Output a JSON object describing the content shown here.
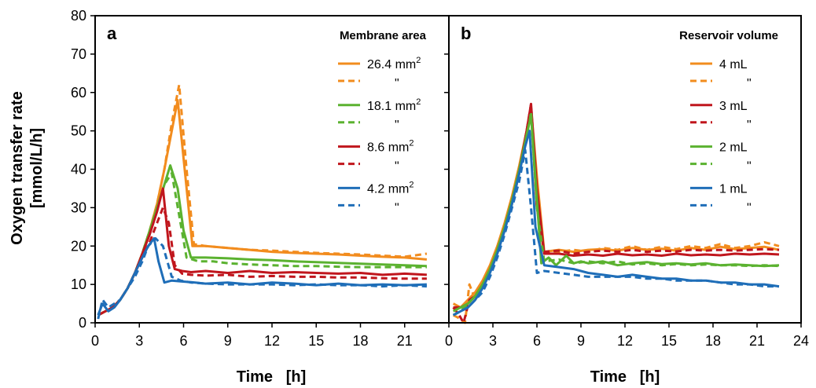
{
  "figure": {
    "ylabel_line1": "Oxygen transfer rate",
    "ylabel_line2": "[mmol/L/h]"
  },
  "chart_data": [
    {
      "type": "line",
      "panel": "a",
      "legend_title": "Membrane area",
      "xlabel": "Time   [h]",
      "ylabel": "Oxygen transfer rate [mmol/L/h]",
      "xlim": [
        0,
        24
      ],
      "ylim": [
        0,
        80
      ],
      "xticks": [
        0,
        3,
        6,
        9,
        12,
        15,
        18,
        21
      ],
      "yticks": [
        0,
        10,
        20,
        30,
        40,
        50,
        60,
        70,
        80
      ],
      "legend_position": "top-right",
      "series": [
        {
          "name": "26.4 mm",
          "sup": "2",
          "color": "#F28C1E",
          "dash": "solid",
          "x": [
            0.2,
            0.7,
            1.2,
            1.7,
            2.2,
            2.7,
            3.2,
            3.7,
            4.2,
            4.7,
            5.2,
            5.6,
            6.1,
            6.6,
            7.5,
            9,
            10.5,
            12,
            13.5,
            15,
            16.5,
            18,
            19.5,
            21,
            22.5
          ],
          "y": [
            2,
            3,
            4,
            6,
            9,
            13,
            18,
            24,
            31,
            40,
            50,
            58,
            39,
            20,
            20,
            19.5,
            19,
            18.5,
            18.2,
            18,
            17.8,
            17.5,
            17.2,
            17,
            16.5
          ]
        },
        {
          "name": "",
          "color": "#F28C1E",
          "dash": "dashed",
          "x": [
            0.2,
            0.7,
            1.2,
            1.7,
            2.2,
            2.7,
            3.2,
            3.7,
            4.2,
            4.7,
            5.2,
            5.7,
            6.2,
            6.7,
            7.5,
            9,
            10.5,
            12,
            13.5,
            15,
            16.5,
            18,
            19.5,
            21,
            22.5
          ],
          "y": [
            2,
            3,
            4,
            6,
            9,
            13,
            18,
            24,
            31,
            40,
            52,
            62,
            40,
            20.5,
            20,
            19.5,
            19,
            18.8,
            18.5,
            18.2,
            18,
            17.8,
            17.5,
            17.2,
            18
          ]
        },
        {
          "name": "18.1 mm",
          "sup": "2",
          "color": "#5BB230",
          "dash": "solid",
          "x": [
            0.2,
            0.7,
            1.2,
            1.7,
            2.2,
            2.7,
            3.2,
            3.7,
            4.2,
            4.7,
            5.1,
            5.6,
            6,
            6.5,
            7.5,
            9,
            10.5,
            12,
            13.5,
            15,
            16.5,
            18,
            19.5,
            21,
            22.5
          ],
          "y": [
            2,
            3,
            4,
            6,
            9,
            13,
            18,
            24,
            30,
            36,
            41,
            35,
            24,
            17,
            17,
            16.8,
            16.5,
            16.3,
            16,
            15.8,
            15.6,
            15.4,
            15.2,
            15,
            14.8
          ]
        },
        {
          "name": "",
          "color": "#5BB230",
          "dash": "dashed",
          "x": [
            0.2,
            0.7,
            1.2,
            1.7,
            2.2,
            2.7,
            3.2,
            3.7,
            4.2,
            4.7,
            5.2,
            5.7,
            6.2,
            7,
            8,
            9,
            10.5,
            12,
            13.5,
            15,
            16.5,
            18,
            19.5,
            21,
            22.5
          ],
          "y": [
            2,
            3,
            4,
            6,
            9,
            13,
            18,
            24,
            30,
            36,
            39,
            28,
            17,
            16,
            16,
            15.5,
            15.2,
            15,
            14.8,
            14.8,
            14.6,
            14.5,
            14.5,
            14.5,
            14.5
          ]
        },
        {
          "name": "8.6 mm",
          "sup": "2",
          "color": "#C0161D",
          "dash": "solid",
          "x": [
            0.2,
            0.7,
            1.2,
            1.7,
            2.2,
            2.7,
            3.2,
            3.7,
            4.2,
            4.6,
            5,
            5.4,
            5.9,
            6.5,
            7.5,
            9,
            10.5,
            12,
            13.5,
            15,
            16.5,
            18,
            19.5,
            21,
            22.5
          ],
          "y": [
            2,
            3,
            4,
            6,
            9,
            13,
            18,
            23,
            29,
            35,
            20,
            14,
            13.5,
            13.2,
            13.5,
            13,
            13.5,
            13,
            13.2,
            13,
            12.8,
            13,
            12.5,
            12.8,
            12.5
          ]
        },
        {
          "name": "",
          "color": "#C0161D",
          "dash": "dashed",
          "x": [
            0.2,
            0.7,
            1.2,
            1.7,
            2.2,
            2.7,
            3.2,
            3.7,
            4.2,
            4.6,
            5,
            5.4,
            5.9,
            6.5,
            7.5,
            9,
            10.5,
            12,
            13.5,
            15,
            16.5,
            18,
            19.5,
            21,
            22.5
          ],
          "y": [
            2,
            3,
            4,
            6,
            9,
            13,
            17,
            21,
            26,
            30,
            26,
            15,
            12.8,
            12.5,
            12.3,
            12.5,
            12,
            12.2,
            12,
            12,
            11.8,
            11.8,
            11.6,
            11.5,
            11.5
          ]
        },
        {
          "name": "4.2 mm",
          "sup": "2",
          "color": "#1F6EB8",
          "dash": "solid",
          "x": [
            0.2,
            0.5,
            0.9,
            1.3,
            1.7,
            2.2,
            2.7,
            3.2,
            3.6,
            4,
            4.3,
            4.7,
            5.2,
            5.8,
            6.5,
            7.5,
            9,
            10.5,
            12,
            13.5,
            15,
            16.5,
            18,
            19.5,
            21,
            22.5
          ],
          "y": [
            2,
            5,
            3,
            4,
            6,
            9,
            13,
            17,
            20,
            22,
            16,
            10.5,
            11,
            10.8,
            10.6,
            10.2,
            10.5,
            10,
            10.5,
            10.2,
            9.8,
            10.2,
            9.8,
            10,
            9.8,
            10
          ]
        },
        {
          "name": "",
          "color": "#1F6EB8",
          "dash": "dashed",
          "x": [
            0.2,
            0.5,
            0.9,
            1.3,
            1.7,
            2.2,
            2.7,
            3.2,
            3.6,
            4.1,
            4.6,
            5.2,
            5.8,
            6.5,
            7.5,
            9,
            10.5,
            12,
            13.5,
            15,
            16.5,
            18,
            19.5,
            21,
            22.5
          ],
          "y": [
            1,
            6,
            4,
            5,
            6,
            9,
            12,
            16,
            20,
            22,
            20,
            12,
            11,
            10.5,
            10.2,
            10,
            10,
            10,
            9.8,
            10,
            9.8,
            9.8,
            9.5,
            9.8,
            9.5
          ]
        }
      ]
    },
    {
      "type": "line",
      "panel": "b",
      "legend_title": "Reservoir volume",
      "xlabel": "Time   [h]",
      "ylabel": "",
      "xlim": [
        0,
        24
      ],
      "ylim": [
        0,
        80
      ],
      "xticks": [
        0,
        3,
        6,
        9,
        12,
        15,
        18,
        21,
        24
      ],
      "yticks": [
        0,
        10,
        20,
        30,
        40,
        50,
        60,
        70,
        80
      ],
      "legend_position": "top-right",
      "series": [
        {
          "name": "4 mL",
          "color": "#F28C1E",
          "dash": "solid",
          "x": [
            0.3,
            0.8,
            1.3,
            1.8,
            2.3,
            2.8,
            3.3,
            3.8,
            4.3,
            4.8,
            5.3,
            5.6,
            6,
            6.5,
            7.5,
            8.5,
            9.5,
            10.5,
            11.5,
            12.5,
            13.5,
            14.5,
            15.5,
            16.5,
            17.5,
            18.5,
            19.5,
            20.5,
            21.5,
            22.5
          ],
          "y": [
            5,
            4,
            6,
            8,
            11,
            15,
            20,
            26,
            33,
            41,
            50,
            56,
            38,
            18.5,
            19,
            18.5,
            19,
            19.2,
            18.8,
            19.5,
            19,
            19.3,
            18.8,
            19.5,
            19,
            19.8,
            19.2,
            19.5,
            19.8,
            19
          ]
        },
        {
          "name": "",
          "color": "#F28C1E",
          "dash": "dashed",
          "x": [
            0.3,
            0.8,
            1.1,
            1.4,
            1.8,
            2.3,
            2.8,
            3.3,
            3.8,
            4.3,
            4.8,
            5.3,
            5.6,
            6,
            6.5,
            7.5,
            8.5,
            9.5,
            10.5,
            11.5,
            12.5,
            13.5,
            14.5,
            15.5,
            16.5,
            17.5,
            18.5,
            19.5,
            20.5,
            21.5,
            22.5
          ],
          "y": [
            2,
            1,
            0,
            10,
            6,
            10,
            14,
            19,
            25,
            32,
            40,
            49,
            55,
            30,
            18,
            18.5,
            19,
            18.5,
            19.5,
            19,
            20,
            19,
            19.8,
            19.2,
            20,
            19.5,
            20.5,
            19.5,
            20,
            21,
            20
          ]
        },
        {
          "name": "3 mL",
          "color": "#C0161D",
          "dash": "solid",
          "x": [
            0.3,
            0.8,
            1.3,
            1.8,
            2.3,
            2.8,
            3.3,
            3.8,
            4.3,
            4.8,
            5.3,
            5.6,
            6,
            6.5,
            7.5,
            8.5,
            9.5,
            10.5,
            11.5,
            12.5,
            13.5,
            14.5,
            15.5,
            16.5,
            17.5,
            18.5,
            19.5,
            20.5,
            21.5,
            22.5
          ],
          "y": [
            4,
            4,
            5,
            7,
            10,
            14,
            19,
            25,
            32,
            40,
            50,
            57,
            35,
            18,
            18,
            17.5,
            17.8,
            17.5,
            18,
            17.6,
            17.8,
            17.5,
            18,
            17.6,
            17.8,
            17.6,
            18,
            17.8,
            18,
            17.8
          ]
        },
        {
          "name": "",
          "color": "#C0161D",
          "dash": "dashed",
          "x": [
            0.3,
            0.7,
            1,
            1.4,
            1.8,
            2.3,
            2.8,
            3.3,
            3.8,
            4.3,
            4.8,
            5.3,
            5.6,
            6,
            6.5,
            7.5,
            8.5,
            9.5,
            10.5,
            11.5,
            12.5,
            13.5,
            14.5,
            15.5,
            16.5,
            17.5,
            18.5,
            19.5,
            20.5,
            21.5,
            22.5
          ],
          "y": [
            4,
            2,
            0,
            6,
            7,
            10,
            14,
            19,
            25,
            31,
            39,
            50,
            57,
            30,
            18.5,
            18.8,
            18,
            18.5,
            18.8,
            18.5,
            19,
            18.5,
            18.8,
            18.6,
            19,
            18.8,
            19,
            18.8,
            19,
            19.2,
            19
          ]
        },
        {
          "name": "2 mL",
          "color": "#5BB230",
          "dash": "solid",
          "x": [
            0.3,
            0.8,
            1.3,
            1.8,
            2.3,
            2.8,
            3.3,
            3.8,
            4.3,
            4.8,
            5.3,
            5.6,
            6,
            6.3,
            6.8,
            7.3,
            8,
            8.5,
            9,
            9.5,
            10.5,
            11.5,
            12.5,
            13.5,
            14.5,
            15.5,
            16.5,
            17.5,
            18.5,
            19.5,
            20.5,
            21.5,
            22.5
          ],
          "y": [
            3,
            4,
            5,
            7,
            10,
            14,
            19,
            25,
            32,
            40,
            49,
            54,
            32,
            15.5,
            17,
            15,
            17.5,
            15.5,
            16,
            15.5,
            16,
            15,
            15.5,
            15.8,
            15.3,
            15.5,
            15.2,
            15.5,
            15,
            15.2,
            15,
            14.8,
            15
          ]
        },
        {
          "name": "",
          "color": "#5BB230",
          "dash": "dashed",
          "x": [
            0.3,
            0.8,
            1.3,
            1.8,
            2.3,
            2.8,
            3.3,
            3.8,
            4.3,
            4.8,
            5.3,
            5.6,
            6,
            6.5,
            7.5,
            8.5,
            9.5,
            10.5,
            11.5,
            12.5,
            13.5,
            14.5,
            15.5,
            16.5,
            17.5,
            18.5,
            19.5,
            20.5,
            21.5,
            22.5
          ],
          "y": [
            2,
            3,
            5,
            7,
            10,
            14,
            19,
            25,
            31,
            39,
            48,
            55,
            30,
            16,
            16.5,
            15.5,
            16,
            15.5,
            16,
            15.2,
            15.5,
            15,
            15.3,
            15,
            15.2,
            15,
            15,
            14.8,
            15,
            14.8
          ]
        },
        {
          "name": "1 mL",
          "color": "#1F6EB8",
          "dash": "solid",
          "x": [
            0.3,
            0.8,
            1.3,
            1.8,
            2.3,
            2.8,
            3.3,
            3.8,
            4.3,
            4.8,
            5.2,
            5.5,
            5.9,
            6.5,
            7.5,
            8.5,
            9.5,
            10.5,
            11.5,
            12.5,
            13.5,
            14.5,
            15.5,
            16.5,
            17.5,
            18.5,
            19.5,
            20.5,
            21.5,
            22.5
          ],
          "y": [
            2,
            3,
            4,
            6,
            9,
            13,
            18,
            24,
            31,
            39,
            46,
            50,
            25,
            15,
            14.5,
            14,
            13,
            12.5,
            12,
            12.5,
            12,
            11.5,
            11.5,
            11,
            11,
            10.5,
            10.5,
            10,
            10,
            9.5
          ]
        },
        {
          "name": "",
          "color": "#1F6EB8",
          "dash": "dashed",
          "x": [
            0.3,
            0.8,
            1.3,
            1.8,
            2.3,
            2.8,
            3.3,
            3.8,
            4.3,
            4.8,
            5.2,
            5.6,
            6,
            6.5,
            7.5,
            8.5,
            9.5,
            10.5,
            11.5,
            12.5,
            13.5,
            14.5,
            15.5,
            16.5,
            17.5,
            18.5,
            19.5,
            20.5,
            21.5,
            22.5
          ],
          "y": [
            2,
            3,
            4,
            6,
            8,
            12,
            17,
            23,
            30,
            37,
            45,
            30,
            13,
            13.5,
            13,
            12.5,
            12,
            12,
            12,
            12,
            11.5,
            11.5,
            11,
            11,
            11,
            10.5,
            10,
            10,
            9.5,
            9.5
          ]
        }
      ]
    }
  ]
}
